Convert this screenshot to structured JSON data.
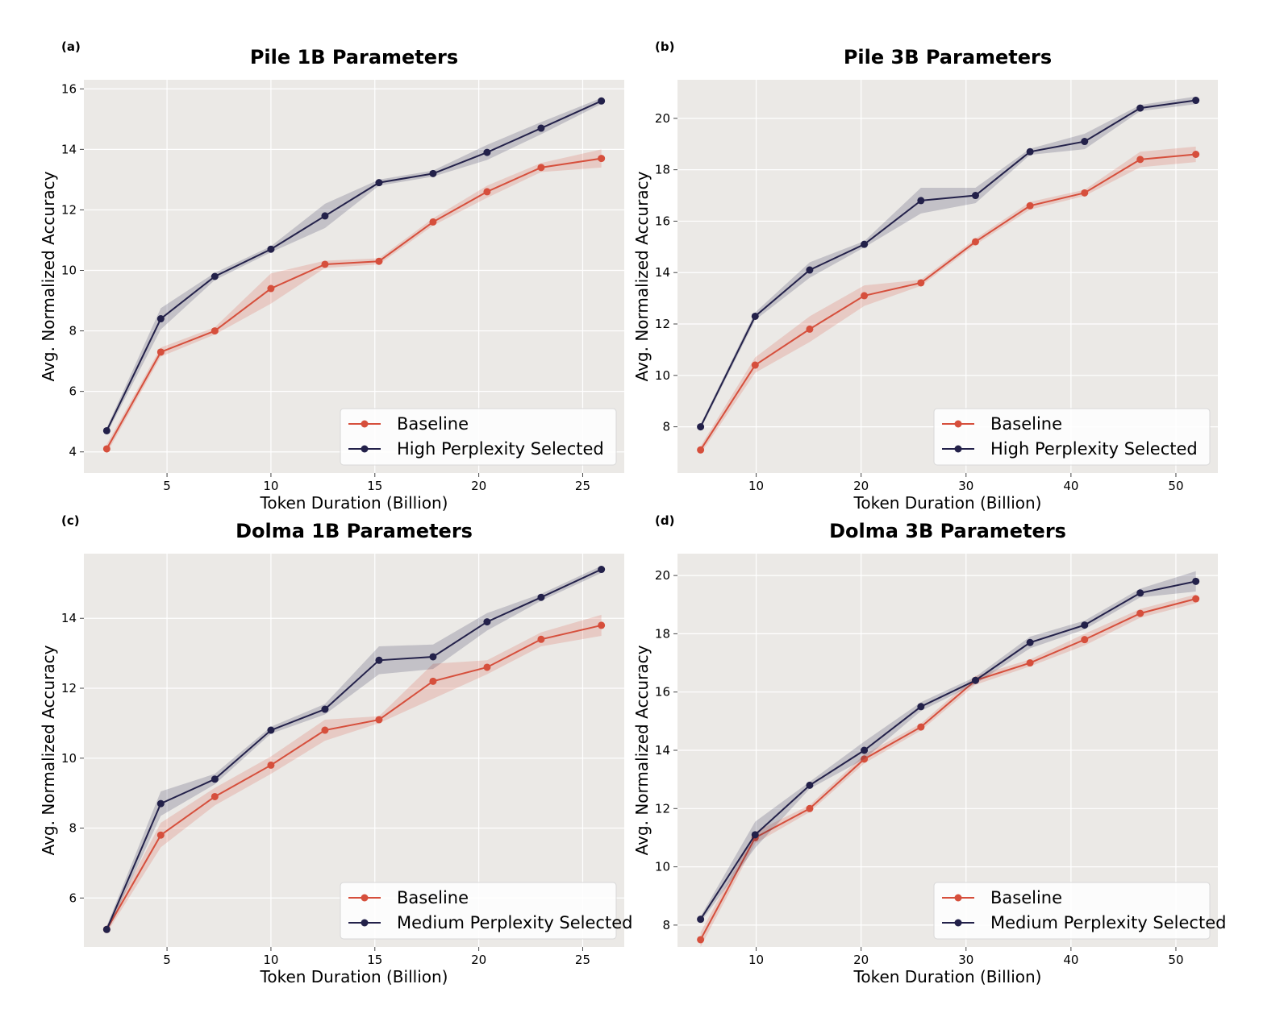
{
  "chart_data": [
    {
      "panel": "(a)",
      "type": "line",
      "title": "Pile 1B Parameters",
      "xlabel": "Token Duration (Billion)",
      "ylabel": "Avg. Normalized Accuracy",
      "xlim": [
        1.0,
        27.0
      ],
      "ylim": [
        3.3,
        16.3
      ],
      "xticks": [
        5,
        10,
        15,
        20,
        25
      ],
      "yticks": [
        4,
        6,
        8,
        10,
        12,
        14,
        16
      ],
      "grid": true,
      "legend_position": "lower-right",
      "x": [
        2.1,
        4.7,
        7.3,
        10.0,
        12.6,
        15.2,
        17.8,
        20.4,
        23.0,
        25.9
      ],
      "series": [
        {
          "name": "Baseline",
          "color": "#d64f3c",
          "values": [
            4.1,
            7.3,
            8.0,
            9.4,
            10.2,
            10.3,
            11.6,
            12.6,
            13.4,
            13.7
          ],
          "band": [
            0.15,
            0.15,
            0.12,
            0.5,
            0.12,
            0.1,
            0.12,
            0.2,
            0.15,
            0.3
          ]
        },
        {
          "name": "High Perplexity Selected",
          "color": "#23214a",
          "values": [
            4.7,
            8.4,
            9.8,
            10.7,
            11.8,
            12.9,
            13.2,
            13.9,
            14.7,
            15.6
          ],
          "band": [
            0.1,
            0.35,
            0.12,
            0.1,
            0.4,
            0.1,
            0.1,
            0.25,
            0.2,
            0.1
          ]
        }
      ]
    },
    {
      "panel": "(b)",
      "type": "line",
      "title": "Pile 3B Parameters",
      "xlabel": "Token Duration (Billion)",
      "ylabel": "Avg. Normalized Accuracy",
      "xlim": [
        2.5,
        54.0
      ],
      "ylim": [
        6.2,
        21.5
      ],
      "xticks": [
        10,
        20,
        30,
        40,
        50
      ],
      "yticks": [
        8,
        10,
        12,
        14,
        16,
        18,
        20
      ],
      "grid": true,
      "legend_position": "lower-right",
      "x": [
        4.7,
        9.9,
        15.1,
        20.3,
        25.7,
        30.9,
        36.1,
        41.3,
        46.6,
        51.9
      ],
      "series": [
        {
          "name": "Baseline",
          "color": "#d64f3c",
          "values": [
            7.1,
            10.4,
            11.8,
            13.1,
            13.6,
            15.2,
            16.6,
            17.1,
            18.4,
            18.6
          ],
          "band": [
            0.15,
            0.3,
            0.5,
            0.4,
            0.12,
            0.12,
            0.15,
            0.12,
            0.3,
            0.3
          ]
        },
        {
          "name": "High Perplexity Selected",
          "color": "#23214a",
          "values": [
            8.0,
            12.3,
            14.1,
            15.1,
            16.8,
            17.0,
            18.7,
            19.1,
            20.4,
            20.7
          ],
          "band": [
            0.1,
            0.15,
            0.3,
            0.12,
            0.5,
            0.3,
            0.12,
            0.3,
            0.12,
            0.15
          ]
        }
      ]
    },
    {
      "panel": "(c)",
      "type": "line",
      "title": "Dolma 1B Parameters",
      "xlabel": "Token Duration (Billion)",
      "ylabel": "Avg. Normalized Accuracy",
      "xlim": [
        1.0,
        27.0
      ],
      "ylim": [
        4.6,
        15.85
      ],
      "xticks": [
        5,
        10,
        15,
        20,
        25
      ],
      "yticks": [
        6,
        8,
        10,
        12,
        14
      ],
      "grid": true,
      "legend_position": "lower-right",
      "x": [
        2.1,
        4.7,
        7.3,
        10.0,
        12.6,
        15.2,
        17.8,
        20.4,
        23.0,
        25.9
      ],
      "series": [
        {
          "name": "Baseline",
          "color": "#d64f3c",
          "values": [
            5.1,
            7.8,
            8.9,
            9.8,
            10.8,
            11.1,
            12.2,
            12.6,
            13.4,
            13.8
          ],
          "band": [
            0.1,
            0.35,
            0.25,
            0.25,
            0.3,
            0.1,
            0.5,
            0.2,
            0.2,
            0.3
          ]
        },
        {
          "name": "Medium Perplexity Selected",
          "color": "#23214a",
          "values": [
            5.1,
            8.7,
            9.4,
            10.8,
            11.4,
            12.8,
            12.9,
            13.9,
            14.6,
            15.4
          ],
          "band": [
            0.1,
            0.35,
            0.15,
            0.1,
            0.15,
            0.4,
            0.35,
            0.25,
            0.1,
            0.1
          ]
        }
      ]
    },
    {
      "panel": "(d)",
      "type": "line",
      "title": "Dolma 3B Parameters",
      "xlabel": "Token Duration (Billion)",
      "ylabel": "Avg. Normalized Accuracy",
      "xlim": [
        2.5,
        54.0
      ],
      "ylim": [
        7.25,
        20.75
      ],
      "xticks": [
        10,
        20,
        30,
        40,
        50
      ],
      "yticks": [
        8,
        10,
        12,
        14,
        16,
        18,
        20
      ],
      "grid": true,
      "legend_position": "lower-right",
      "x": [
        4.7,
        9.9,
        15.1,
        20.3,
        25.7,
        30.9,
        36.1,
        41.3,
        46.6,
        51.9
      ],
      "series": [
        {
          "name": "Baseline",
          "color": "#d64f3c",
          "values": [
            7.5,
            11.0,
            12.0,
            13.7,
            14.8,
            16.4,
            17.0,
            17.8,
            18.7,
            19.2
          ],
          "band": [
            0.25,
            0.2,
            0.12,
            0.15,
            0.12,
            0.15,
            0.12,
            0.2,
            0.15,
            0.15
          ]
        },
        {
          "name": "Medium Perplexity Selected",
          "color": "#23214a",
          "values": [
            8.2,
            11.1,
            12.8,
            14.0,
            15.5,
            16.4,
            17.7,
            18.3,
            19.4,
            19.8
          ],
          "band": [
            0.1,
            0.45,
            0.12,
            0.3,
            0.15,
            0.12,
            0.2,
            0.15,
            0.15,
            0.35
          ]
        }
      ]
    }
  ]
}
